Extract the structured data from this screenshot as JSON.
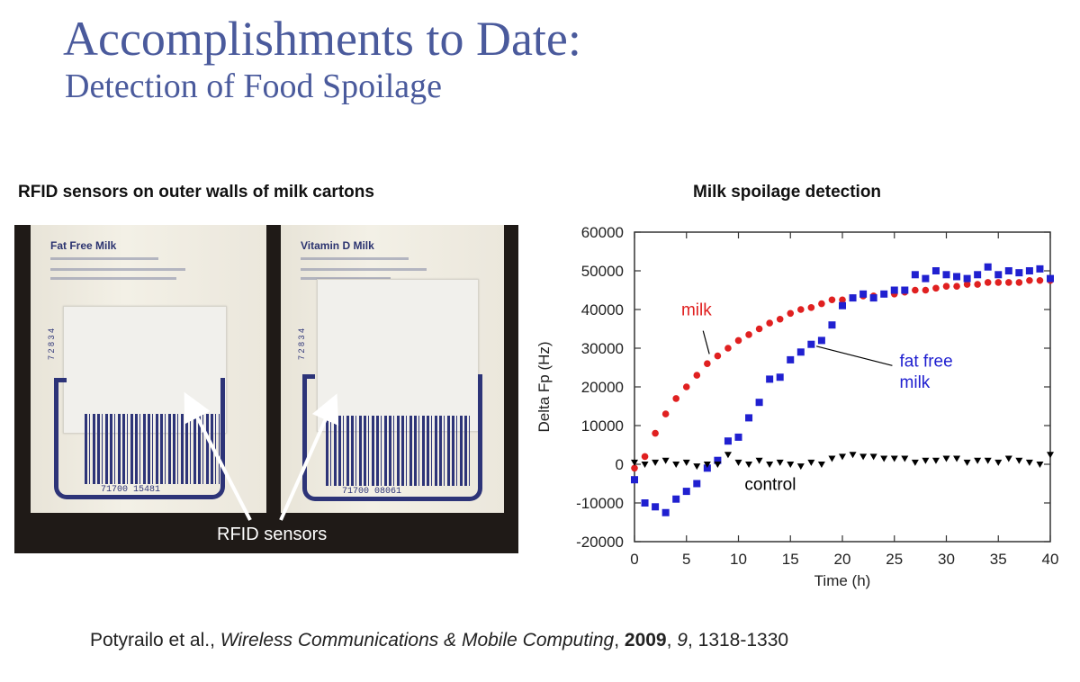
{
  "slide": {
    "title": "Accomplishments to Date:",
    "subtitle": "Detection of Food Spoilage",
    "photo_caption": "RFID sensors on outer walls of milk cartons",
    "citation": {
      "authors": "Potyrailo et al., ",
      "journal": "Wireless Communications & Mobile Computing",
      "sep1": ", ",
      "year": "2009",
      "sep2": ", ",
      "volume": "9",
      "pages": ", 1318-1330"
    }
  },
  "photo": {
    "carton_left_label": "Fat Free Milk",
    "carton_right_label": "Vitamin D Milk",
    "barcode_left": "71700 15481",
    "barcode_right": "71700 08061",
    "sensor_label": "RFID sensors"
  },
  "chart_data": {
    "type": "scatter",
    "title": "Milk spoilage detection",
    "xlabel": "Time (h)",
    "ylabel": "Delta Fp (Hz)",
    "xlim": [
      0,
      40
    ],
    "ylim": [
      -20000,
      60000
    ],
    "xticks": [
      0,
      5,
      10,
      15,
      20,
      25,
      30,
      35,
      40
    ],
    "yticks": [
      -20000,
      -10000,
      0,
      10000,
      20000,
      30000,
      40000,
      50000,
      60000
    ],
    "grid": false,
    "annotations": [
      {
        "text": "milk",
        "color": "#e02020"
      },
      {
        "text": "fat free",
        "color": "#2020d0"
      },
      {
        "text": "milk",
        "color": "#2020d0"
      },
      {
        "text": "control",
        "color": "#000000"
      }
    ],
    "series": [
      {
        "color": "#e02020",
        "marker": "circle",
        "x": [
          0,
          1,
          2,
          3,
          4,
          5,
          6,
          7,
          8,
          9,
          10,
          11,
          12,
          13,
          14,
          15,
          16,
          17,
          18,
          19,
          20,
          21,
          22,
          23,
          24,
          25,
          26,
          27,
          28,
          29,
          30,
          31,
          32,
          33,
          34,
          35,
          36,
          37,
          38,
          39,
          40
        ],
        "y": [
          -1000,
          2000,
          8000,
          13000,
          17000,
          20000,
          23000,
          26000,
          28000,
          30000,
          32000,
          33500,
          35000,
          36500,
          37500,
          39000,
          40000,
          40500,
          41500,
          42500,
          42500,
          43000,
          43500,
          43500,
          44000,
          44000,
          44500,
          45000,
          45000,
          45500,
          46000,
          46000,
          46500,
          46500,
          47000,
          47000,
          47000,
          47000,
          47500,
          47500,
          47500
        ]
      },
      {
        "color": "#2020d0",
        "marker": "square",
        "x": [
          0,
          1,
          2,
          3,
          4,
          5,
          6,
          7,
          8,
          9,
          10,
          11,
          12,
          13,
          14,
          15,
          16,
          17,
          18,
          19,
          20,
          21,
          22,
          23,
          24,
          25,
          26,
          27,
          28,
          29,
          30,
          31,
          32,
          33,
          34,
          35,
          36,
          37,
          38,
          39,
          40
        ],
        "y": [
          -4000,
          -10000,
          -11000,
          -12500,
          -9000,
          -7000,
          -5000,
          -1000,
          1000,
          6000,
          7000,
          12000,
          16000,
          22000,
          22500,
          27000,
          29000,
          31000,
          32000,
          36000,
          41000,
          43000,
          44000,
          43000,
          44000,
          45000,
          45000,
          49000,
          48000,
          50000,
          49000,
          48500,
          48000,
          49000,
          51000,
          49000,
          50000,
          49500,
          50000,
          50500,
          48000
        ]
      },
      {
        "color": "#000000",
        "marker": "triangle-down",
        "x": [
          0,
          1,
          2,
          3,
          4,
          5,
          6,
          7,
          8,
          9,
          10,
          11,
          12,
          13,
          14,
          15,
          16,
          17,
          18,
          19,
          20,
          21,
          22,
          23,
          24,
          25,
          26,
          27,
          28,
          29,
          30,
          31,
          32,
          33,
          34,
          35,
          36,
          37,
          38,
          39,
          40
        ],
        "y": [
          500,
          0,
          500,
          1000,
          0,
          500,
          -500,
          0,
          0,
          2500,
          500,
          0,
          1000,
          0,
          500,
          0,
          -500,
          500,
          0,
          1500,
          2000,
          2500,
          2000,
          2000,
          1500,
          1500,
          1500,
          500,
          1000,
          1000,
          1500,
          1500,
          500,
          1000,
          1000,
          500,
          1500,
          1000,
          500,
          0,
          2500
        ]
      }
    ]
  }
}
